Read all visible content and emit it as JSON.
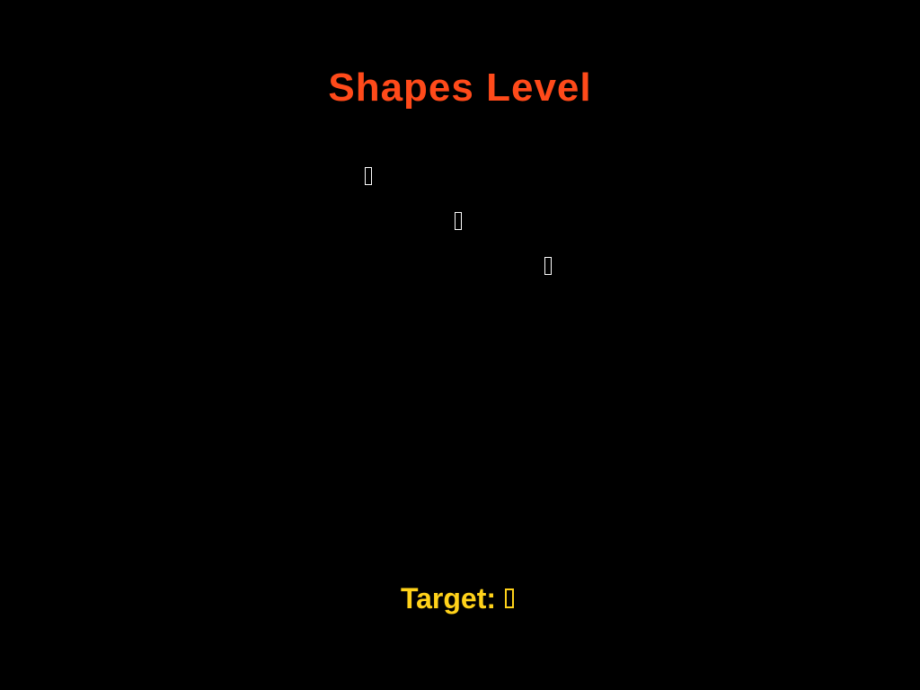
{
  "title": "Shapes Level",
  "colors": {
    "background": "#000000",
    "title": "#FF4A1A",
    "shape": "#FFFFFF",
    "target": "#FFD21A"
  },
  "shapes": [
    {
      "icon": "missing-glyph-icon"
    },
    {
      "icon": "missing-glyph-icon"
    },
    {
      "icon": "missing-glyph-icon"
    }
  ],
  "target": {
    "label": "Target:",
    "icon": "missing-glyph-icon"
  }
}
